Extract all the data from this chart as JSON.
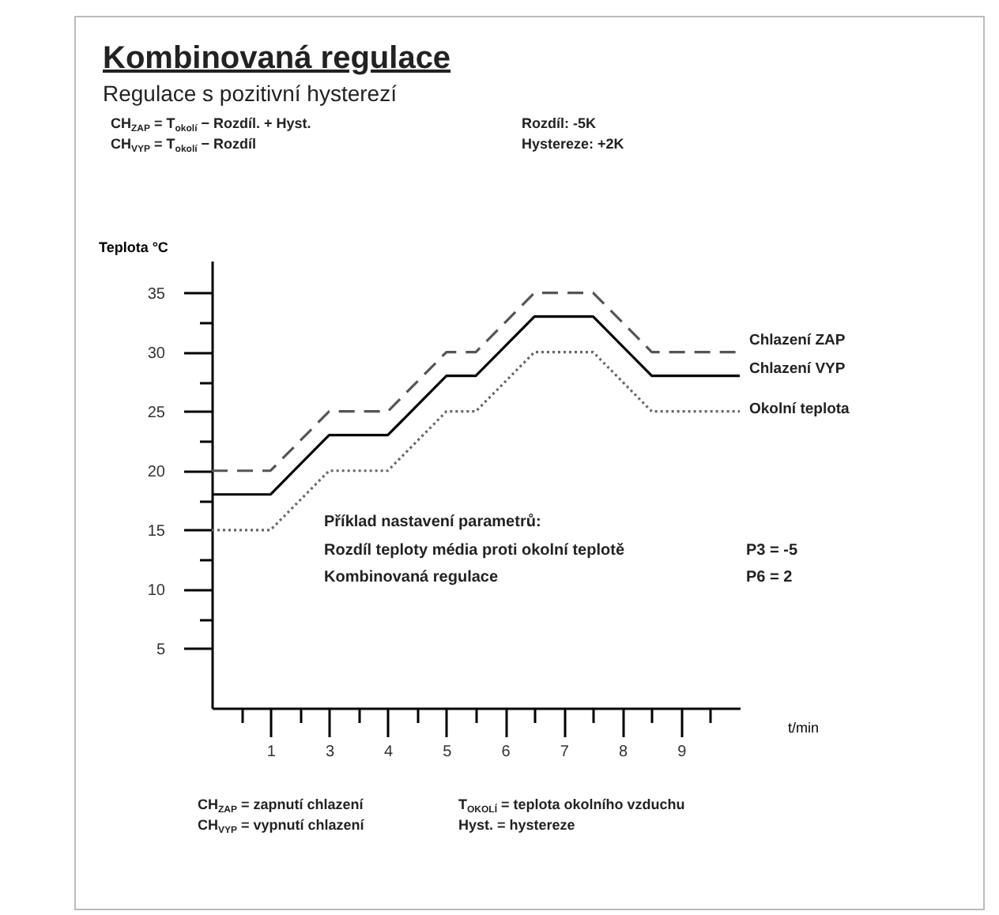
{
  "chart_data": {
    "type": "line",
    "title": "Kombinovaná regulace",
    "subtitle": "Regulace s pozitivní hysterezí",
    "xlabel": "t/min",
    "ylabel": "Teplota °C",
    "annotations": [
      "CH$_{ZAP}$ = T$_{okolí}$ − Rozdíl. + Hyst.",
      "Rozdíl: -5K",
      "CH$_{VYP}$ = T$_{okolí}$ − Rozdíl",
      "Hystereze: +2K",
      "Příklad nastavení parametrů:",
      "Rozdíl teploty média proti okolní teplotě",
      "P3 = -5",
      "Kombinovaná regulace",
      "P6 = 2",
      "CH$_{ZAP}$ = zapnutí chlazení",
      "T$_{OKOLÍ}$ = teplota okolního vzduchu",
      "CH$_{VYP}$ = vypnutí chlazení",
      "Hyst. = hystereze"
    ],
    "categories": [
      null,
      null,
      "1",
      null,
      "3",
      null,
      "4",
      null,
      "5",
      null,
      "6",
      null,
      "7",
      null,
      "8",
      null,
      "9",
      null,
      null
    ],
    "series": [
      {
        "name": "Chlazení ZAP",
        "color": "#555555",
        "line_style": "dashed",
        "values": [
          20,
          20,
          20,
          22.5,
          25,
          25,
          25,
          27.5,
          30,
          30,
          32.5,
          35,
          35,
          35,
          32.5,
          30,
          30,
          30,
          30
        ]
      },
      {
        "name": "Chlazení VYP",
        "color": "#000000",
        "line_style": "solid",
        "values": [
          18,
          18,
          18,
          20.5,
          23,
          23,
          23,
          25.5,
          28,
          28,
          30.5,
          33,
          33,
          33,
          30.5,
          28,
          28,
          28,
          28
        ]
      },
      {
        "name": "Okolní teplota",
        "color": "#666666",
        "line_style": "dotted",
        "values": [
          15,
          15,
          15,
          17.5,
          20,
          20,
          20,
          22.5,
          25,
          25,
          27.5,
          30,
          30,
          30,
          27.5,
          25,
          25,
          25,
          25
        ]
      }
    ],
    "ylim": [
      0,
      37.7
    ],
    "yticks": [
      5,
      {
        "value": 7.5,
        "label": null
      },
      10,
      {
        "value": 12.5,
        "label": null
      },
      15,
      {
        "value": 17.5,
        "label": null
      },
      20,
      {
        "value": 22.5,
        "label": null
      },
      25,
      {
        "value": 27.5,
        "label": null
      },
      30,
      {
        "value": 32.5,
        "label": null
      },
      35
    ],
    "grid": false,
    "legend": false,
    "marker": "none"
  }
}
